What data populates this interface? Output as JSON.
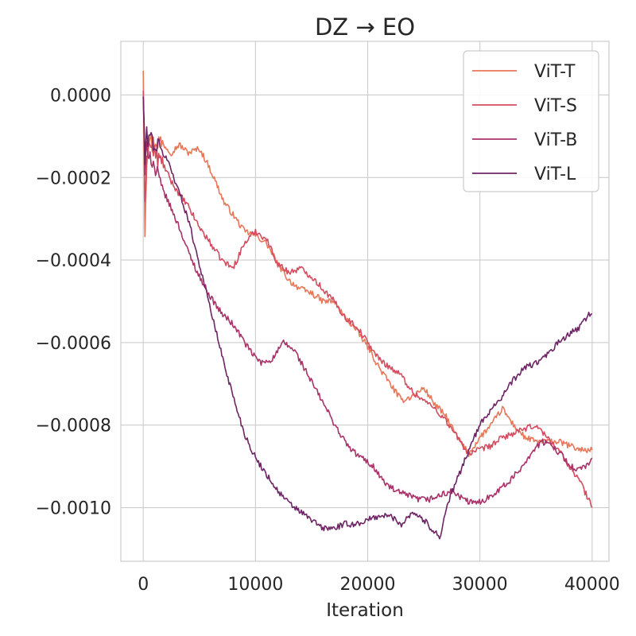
{
  "chart_data": {
    "type": "line",
    "title": "DZ → EO",
    "xlabel": "Iteration",
    "ylabel": "",
    "xlim": [
      -2000,
      41500
    ],
    "ylim": [
      -0.00113,
      0.00013
    ],
    "xticks": [
      0,
      10000,
      20000,
      30000,
      40000
    ],
    "xtick_labels": [
      "0",
      "10000",
      "20000",
      "30000",
      "40000"
    ],
    "yticks": [
      0.0,
      -0.0002,
      -0.0004,
      -0.0006,
      -0.0008,
      -0.001
    ],
    "ytick_labels": [
      "0.0000",
      "−0.0002",
      "−0.0004",
      "−0.0006",
      "−0.0008",
      "−0.0010"
    ],
    "grid": true,
    "legend_position": "top-right",
    "series": [
      {
        "name": "ViT-T",
        "color": "#e8775a",
        "x": [
          0,
          150,
          300,
          500,
          800,
          1200,
          1800,
          2500,
          3200,
          4000,
          5000,
          5800,
          6600,
          7200,
          8000,
          9000,
          10000,
          11000,
          12000,
          13000,
          14000,
          15000,
          16000,
          17000,
          18000,
          19000,
          20000,
          21000,
          22000,
          23000,
          24000,
          25000,
          26000,
          27000,
          28000,
          29000,
          30000,
          31000,
          32000,
          33000,
          34000,
          35000,
          36000,
          37000,
          38000,
          39000,
          40000
        ],
        "y": [
          7e-05,
          -0.00033,
          -0.00015,
          -0.0001,
          -0.00012,
          -0.00011,
          -0.00012,
          -0.00014,
          -0.00012,
          -0.00014,
          -0.00013,
          -0.00017,
          -0.00022,
          -0.00026,
          -0.00029,
          -0.00033,
          -0.00034,
          -0.00036,
          -0.00041,
          -0.00045,
          -0.00047,
          -0.00048,
          -0.0005,
          -0.0005,
          -0.00054,
          -0.00057,
          -0.00061,
          -0.00066,
          -0.0007,
          -0.00074,
          -0.00073,
          -0.00071,
          -0.00075,
          -0.00078,
          -0.00083,
          -0.00087,
          -0.00083,
          -0.0008,
          -0.00076,
          -0.0008,
          -0.00083,
          -0.00084,
          -0.00084,
          -0.00084,
          -0.00085,
          -0.00086,
          -0.00086
        ]
      },
      {
        "name": "ViT-S",
        "color": "#d44c5f",
        "x": [
          0,
          150,
          300,
          500,
          800,
          1200,
          1800,
          2500,
          3200,
          4000,
          5000,
          6000,
          7000,
          8000,
          9000,
          10000,
          11000,
          12000,
          13000,
          14000,
          15000,
          16000,
          17000,
          18000,
          19000,
          20000,
          21000,
          22000,
          23000,
          24000,
          25000,
          26000,
          27000,
          28000,
          29000,
          30000,
          31000,
          32000,
          33000,
          34000,
          35000,
          36000,
          37000,
          38000,
          39000,
          40000
        ],
        "y": [
          2e-05,
          -0.00028,
          -0.00014,
          -0.00012,
          -0.00013,
          -0.00015,
          -0.00017,
          -0.00021,
          -0.00024,
          -0.00027,
          -0.00032,
          -0.00036,
          -0.0004,
          -0.00042,
          -0.00036,
          -0.00033,
          -0.00035,
          -0.00041,
          -0.00043,
          -0.00042,
          -0.00044,
          -0.00047,
          -0.0005,
          -0.00054,
          -0.00056,
          -0.0006,
          -0.00064,
          -0.00066,
          -0.00068,
          -0.00072,
          -0.00074,
          -0.00076,
          -0.00079,
          -0.00083,
          -0.00087,
          -0.00086,
          -0.00085,
          -0.00083,
          -0.00082,
          -0.00081,
          -0.0008,
          -0.00083,
          -0.00086,
          -0.0009,
          -0.00094,
          -0.001
        ]
      },
      {
        "name": "ViT-B",
        "color": "#a83269",
        "x": [
          0,
          150,
          300,
          600,
          1000,
          1600,
          2400,
          3200,
          4000,
          5000,
          6000,
          7000,
          7800,
          8600,
          9500,
          10500,
          11500,
          12500,
          13500,
          14500,
          15500,
          16500,
          17500,
          18500,
          19500,
          20500,
          21500,
          22500,
          23500,
          24500,
          25500,
          26500,
          27500,
          28500,
          29500,
          30500,
          31500,
          32500,
          33500,
          34500,
          35500,
          36500,
          37500,
          38500,
          39500,
          40000
        ],
        "y": [
          0.0,
          -0.0002,
          -0.00012,
          -0.00014,
          -0.00018,
          -0.00022,
          -0.00027,
          -0.00032,
          -0.00038,
          -0.00044,
          -0.00049,
          -0.00053,
          -0.00055,
          -0.00058,
          -0.00062,
          -0.00065,
          -0.00064,
          -0.0006,
          -0.00062,
          -0.00067,
          -0.00072,
          -0.00077,
          -0.00082,
          -0.00086,
          -0.00088,
          -0.0009,
          -0.00094,
          -0.00096,
          -0.00097,
          -0.00098,
          -0.00098,
          -0.00097,
          -0.00096,
          -0.00098,
          -0.00099,
          -0.00098,
          -0.00096,
          -0.00094,
          -0.00091,
          -0.00087,
          -0.00084,
          -0.00085,
          -0.00088,
          -0.00091,
          -0.0009,
          -0.00088
        ]
      },
      {
        "name": "ViT-L",
        "color": "#6e2465",
        "x": [
          0,
          150,
          300,
          600,
          1000,
          1500,
          2200,
          3000,
          4000,
          5000,
          6000,
          7000,
          8000,
          9000,
          10000,
          11000,
          12000,
          13000,
          14000,
          15000,
          16000,
          17000,
          18000,
          19000,
          20000,
          21000,
          22000,
          23000,
          24000,
          25000,
          26000,
          26500,
          27000,
          28000,
          29000,
          30000,
          31000,
          32000,
          33000,
          34000,
          35000,
          36000,
          37000,
          38000,
          39000,
          39700,
          40000
        ],
        "y": [
          0.0,
          -0.00016,
          -0.0001,
          -0.0001,
          -0.00012,
          -0.00013,
          -0.00016,
          -0.00022,
          -0.0003,
          -0.00041,
          -0.00052,
          -0.00063,
          -0.00073,
          -0.00082,
          -0.00088,
          -0.00092,
          -0.00096,
          -0.00099,
          -0.00101,
          -0.00103,
          -0.00105,
          -0.00105,
          -0.00104,
          -0.00104,
          -0.00103,
          -0.00102,
          -0.00102,
          -0.00104,
          -0.00101,
          -0.00103,
          -0.00106,
          -0.00107,
          -0.001,
          -0.00093,
          -0.00086,
          -0.0008,
          -0.00076,
          -0.00073,
          -0.00069,
          -0.00066,
          -0.00065,
          -0.00063,
          -0.0006,
          -0.00058,
          -0.00056,
          -0.00053,
          -0.00053
        ]
      }
    ]
  }
}
